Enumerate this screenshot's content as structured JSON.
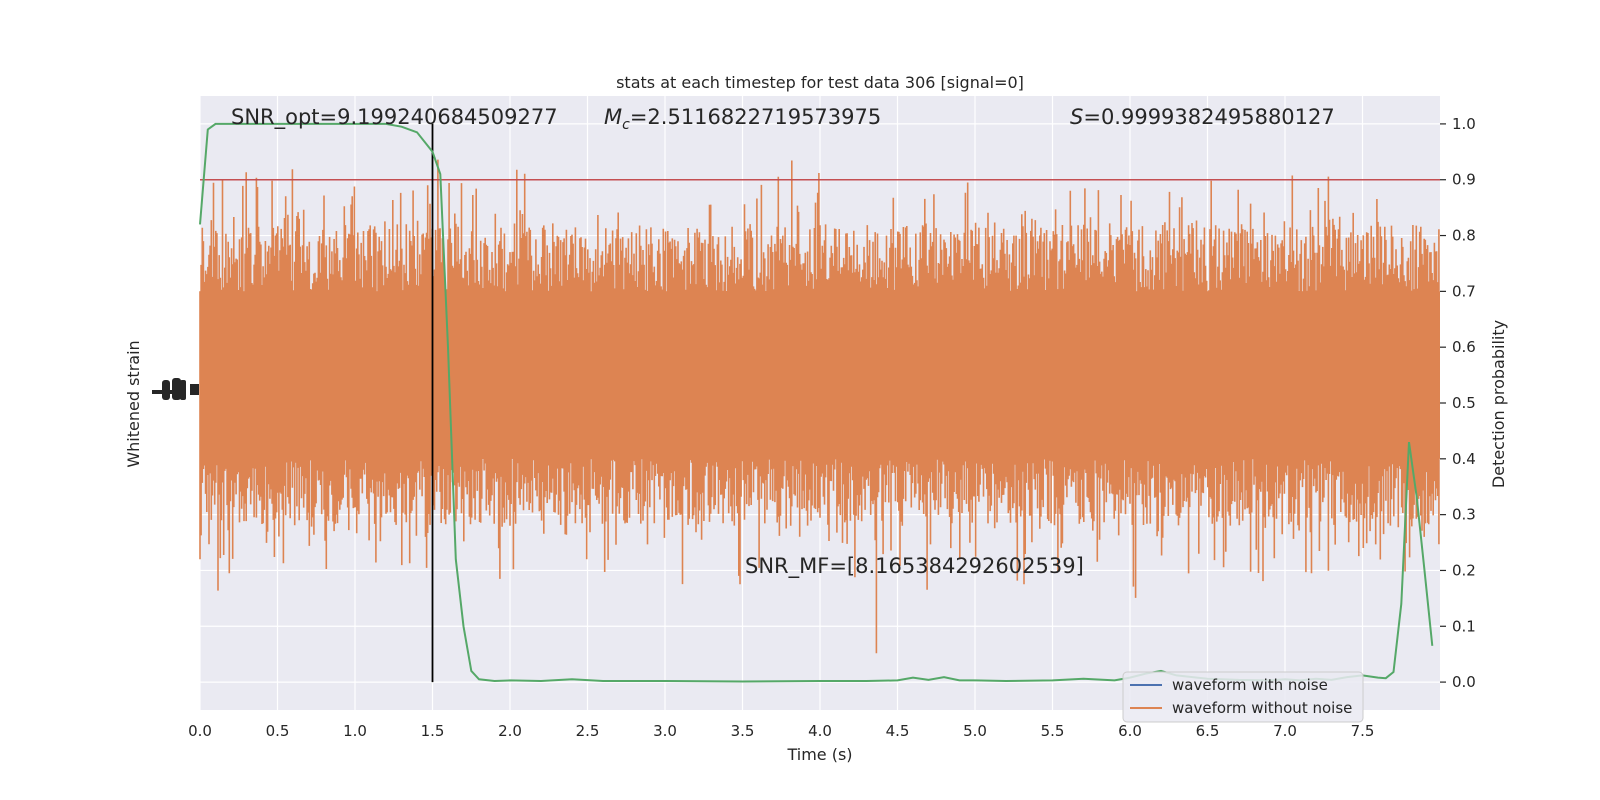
{
  "chart_data": {
    "type": "line",
    "title": "stats at each timestep for test data 306 [signal=0]",
    "xlabel": "Time (s)",
    "ylabel_left": "Whitened strain",
    "ylabel_right": "Detection probability",
    "xlim": [
      0,
      8.0
    ],
    "ylim_right": [
      -0.05,
      1.05
    ],
    "x_ticks": [
      0.0,
      0.5,
      1.0,
      1.5,
      2.0,
      2.5,
      3.0,
      3.5,
      4.0,
      4.5,
      5.0,
      5.5,
      6.0,
      6.5,
      7.0,
      7.5
    ],
    "x_tick_labels": [
      "0.0",
      "0.5",
      "1.0",
      "1.5",
      "2.0",
      "2.5",
      "3.0",
      "3.5",
      "4.0",
      "4.5",
      "5.0",
      "5.5",
      "6.0",
      "6.5",
      "7.0",
      "7.5"
    ],
    "right_ticks": [
      0.0,
      0.1,
      0.2,
      0.3,
      0.4,
      0.5,
      0.6,
      0.7,
      0.8,
      0.9,
      1.0
    ],
    "right_tick_labels": [
      "0.0",
      "0.1",
      "0.2",
      "0.3",
      "0.4",
      "0.5",
      "0.6",
      "0.7",
      "0.8",
      "0.9",
      "1.0"
    ],
    "grid": true,
    "annotations": {
      "snr_opt": "SNR_opt=9.199240684509277",
      "mc_symbol": "M",
      "mc_sub": "c",
      "mc_value": "=2.5116822719573975",
      "s_symbol": "S",
      "s_value": "=0.9999382495880127",
      "snr_mf": "SNR_MF=[8.165384292602539]"
    },
    "threshold": {
      "y": 0.9,
      "color": "#c44e52"
    },
    "vertical_marker": {
      "x": 1.5,
      "color": "#000000"
    },
    "legend": {
      "placement": "lower-right",
      "entries": [
        {
          "label": "waveform with noise",
          "color": "#4c72b0"
        },
        {
          "label": "waveform without noise",
          "color": "#dd8452"
        }
      ]
    },
    "noise_band": {
      "color": "#dd8452",
      "center_probability_units": 0.53,
      "core_low": 0.4,
      "core_high": 0.7,
      "spike_low_min": 0.0,
      "spike_high_max": 1.0,
      "samples": 1100
    },
    "series": [
      {
        "name": "Detection probability",
        "color": "#55a868",
        "x": [
          0.0,
          0.05,
          0.1,
          0.2,
          0.3,
          0.5,
          0.8,
          1.0,
          1.1,
          1.2,
          1.3,
          1.4,
          1.5,
          1.55,
          1.6,
          1.65,
          1.7,
          1.75,
          1.8,
          1.9,
          2.0,
          2.2,
          2.4,
          2.6,
          3.0,
          3.5,
          4.0,
          4.3,
          4.5,
          4.6,
          4.7,
          4.8,
          4.9,
          5.0,
          5.2,
          5.5,
          5.7,
          5.9,
          6.0,
          6.1,
          6.2,
          6.3,
          6.5,
          6.7,
          6.9,
          7.0,
          7.1,
          7.2,
          7.3,
          7.4,
          7.5,
          7.6,
          7.65,
          7.7,
          7.75,
          7.8,
          7.85,
          7.9,
          7.95
        ],
        "values": [
          0.82,
          0.99,
          1.0,
          1.0,
          1.0,
          1.0,
          1.0,
          1.0,
          1.0,
          1.0,
          0.995,
          0.985,
          0.95,
          0.91,
          0.6,
          0.22,
          0.1,
          0.02,
          0.005,
          0.002,
          0.003,
          0.002,
          0.005,
          0.002,
          0.002,
          0.001,
          0.002,
          0.002,
          0.003,
          0.008,
          0.004,
          0.009,
          0.003,
          0.003,
          0.002,
          0.003,
          0.006,
          0.003,
          0.008,
          0.015,
          0.02,
          0.012,
          0.006,
          0.004,
          0.003,
          0.005,
          0.003,
          0.006,
          0.004,
          0.009,
          0.012,
          0.008,
          0.007,
          0.018,
          0.14,
          0.43,
          0.33,
          0.2,
          0.065
        ]
      }
    ]
  }
}
